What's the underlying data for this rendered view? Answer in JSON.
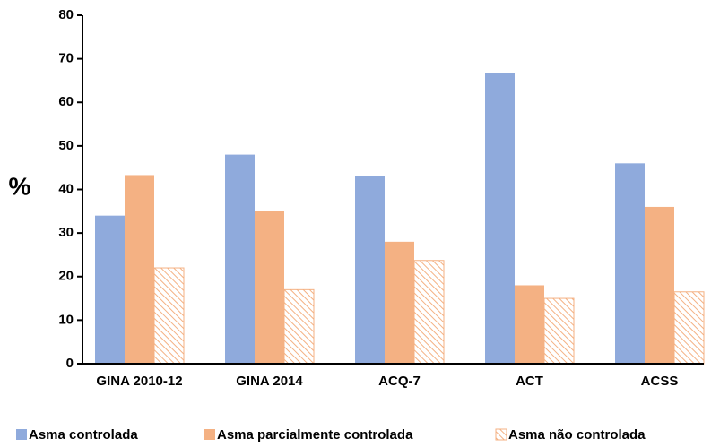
{
  "chart_data": {
    "type": "bar",
    "y_label": "%",
    "categories": [
      "GINA 2010-12",
      "GINA 2014",
      "ACQ-7",
      "ACT",
      "ACSS"
    ],
    "series": [
      {
        "name": "Asma controlada",
        "color": "#8faadc",
        "values": [
          34,
          48,
          43,
          66.7,
          46
        ]
      },
      {
        "name": "Asma parcialmente controlada",
        "color": "#f4b183",
        "values": [
          43.3,
          35,
          28,
          18,
          36
        ]
      },
      {
        "name": "Asma não  controlada",
        "color": "#f4b183",
        "hatched": true,
        "values": [
          22,
          17,
          23.7,
          15,
          16.5
        ]
      }
    ],
    "ylim": [
      0,
      80
    ],
    "yticks": [
      0,
      10,
      20,
      30,
      40,
      50,
      60,
      70,
      80
    ],
    "grid": false
  }
}
